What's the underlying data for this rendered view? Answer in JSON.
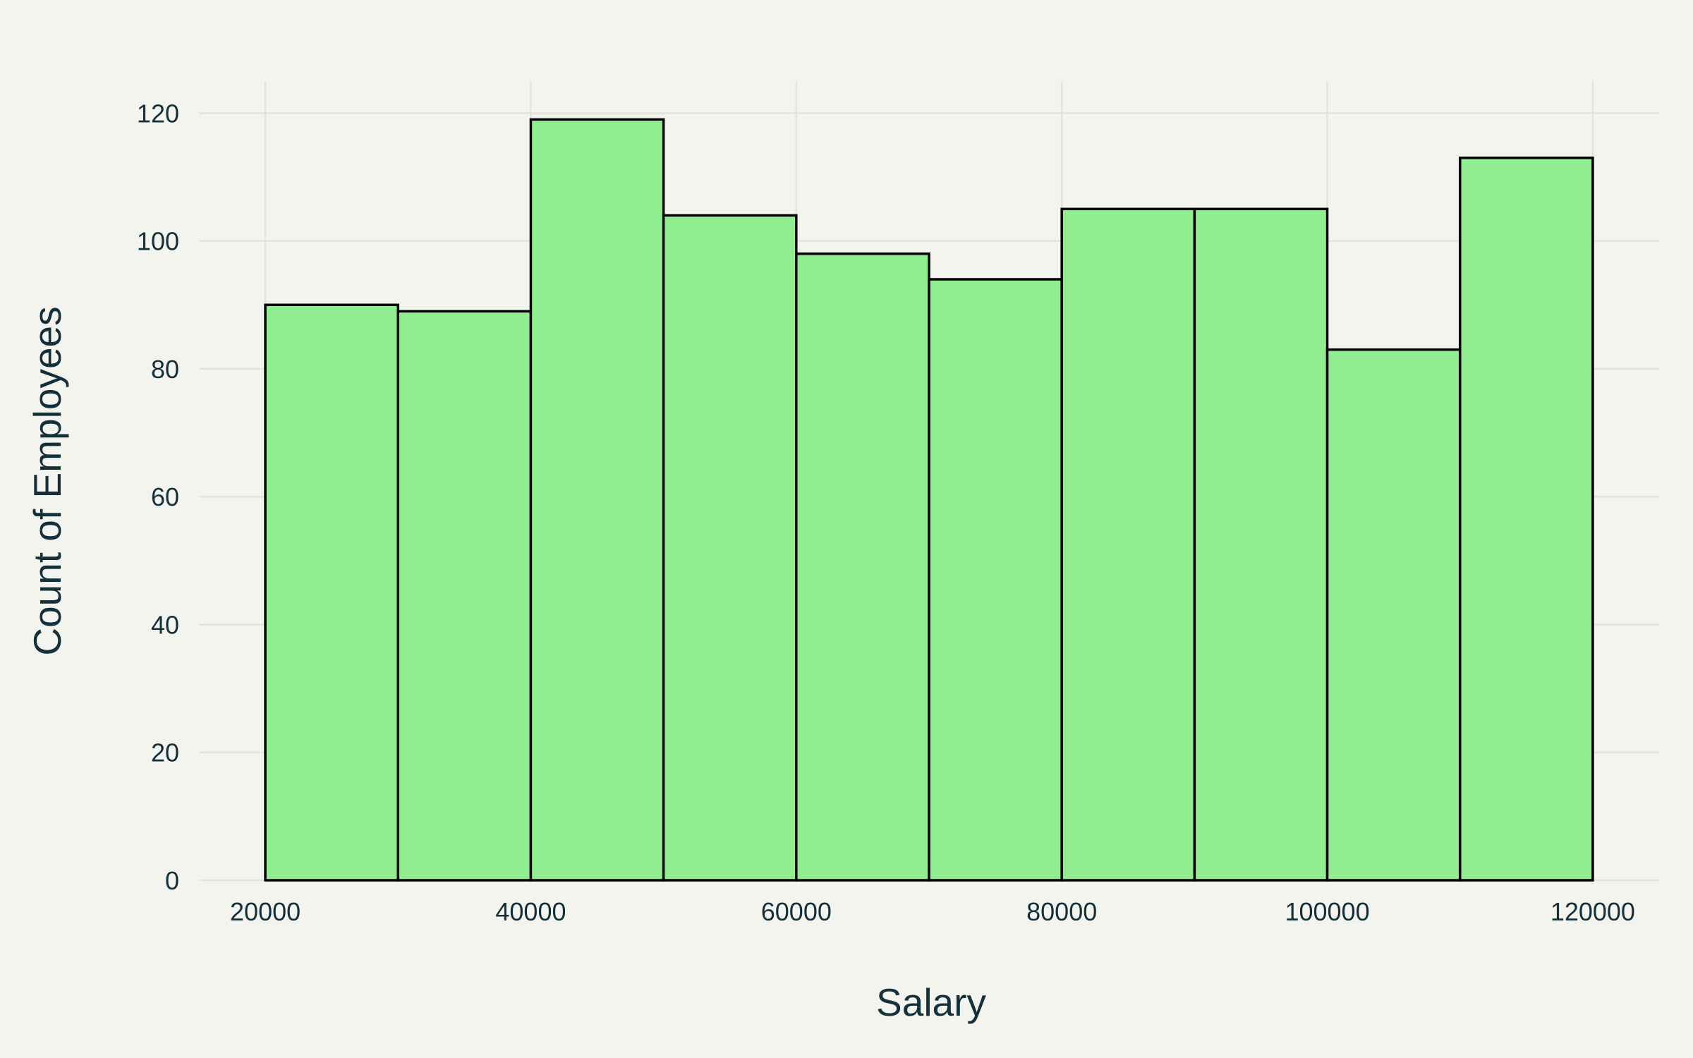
{
  "chart_data": {
    "type": "bar",
    "subtype": "histogram",
    "title": "",
    "xlabel": "Salary",
    "ylabel": "Count of Employees",
    "bin_edges": [
      20000,
      30000,
      40000,
      50000,
      60000,
      70000,
      80000,
      90000,
      100000,
      110000,
      120000
    ],
    "values": [
      90,
      89,
      119,
      104,
      98,
      94,
      105,
      105,
      83,
      113
    ],
    "xlim": [
      15000,
      125000
    ],
    "ylim": [
      0,
      125
    ],
    "x_ticks": [
      20000,
      40000,
      60000,
      80000,
      100000,
      120000
    ],
    "y_ticks": [
      0,
      20,
      40,
      60,
      80,
      100,
      120
    ],
    "grid": true,
    "legend": "none",
    "colors": {
      "bar_fill": "#90ee90",
      "bar_edge": "#000000",
      "background": "#f4f4ef",
      "grid": "#e4e4df",
      "text": "#13303b"
    }
  }
}
